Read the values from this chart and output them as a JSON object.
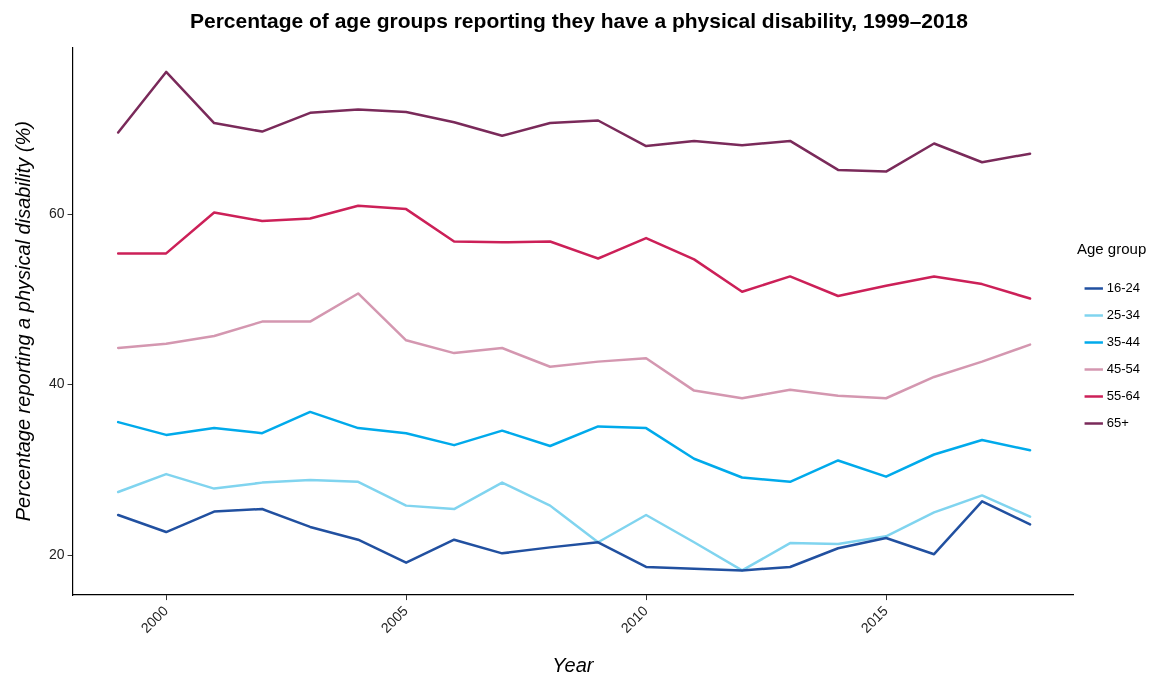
{
  "chart_data": {
    "type": "line",
    "title": "Percentage of age groups reporting they have a physical disability, 1999–2018",
    "xlabel": "Year",
    "ylabel": "Percentage reporting a physical disability (%)",
    "legend_title": "Age group",
    "x": [
      1999,
      2000,
      2001,
      2002,
      2003,
      2004,
      2005,
      2006,
      2007,
      2008,
      2009,
      2010,
      2011,
      2012,
      2013,
      2014,
      2015,
      2016,
      2017,
      2018
    ],
    "series": [
      {
        "name": "16-24",
        "color": "#2150a0",
        "values": [
          24.7,
          22.7,
          25.1,
          25.4,
          23.3,
          21.8,
          19.1,
          21.8,
          20.2,
          20.9,
          21.5,
          18.6,
          18.4,
          18.2,
          18.6,
          20.8,
          22.0,
          20.1,
          26.3,
          23.6
        ]
      },
      {
        "name": "25-34",
        "color": "#80d4ef",
        "values": [
          27.4,
          29.5,
          27.8,
          28.5,
          28.8,
          28.6,
          25.8,
          25.4,
          28.5,
          25.8,
          21.5,
          24.7,
          21.5,
          18.2,
          21.4,
          21.3,
          22.2,
          25.0,
          27.0,
          24.5
        ]
      },
      {
        "name": "35-44",
        "color": "#00aaeb",
        "values": [
          35.6,
          34.1,
          34.9,
          34.3,
          36.8,
          34.9,
          34.3,
          32.9,
          34.6,
          32.8,
          35.1,
          34.9,
          31.3,
          29.1,
          28.6,
          31.1,
          29.2,
          31.8,
          33.5,
          32.3
        ]
      },
      {
        "name": "45-54",
        "color": "#d497b0",
        "values": [
          44.3,
          44.8,
          45.7,
          47.4,
          47.4,
          50.7,
          45.2,
          43.7,
          44.3,
          42.1,
          42.7,
          43.1,
          39.3,
          38.4,
          39.4,
          38.7,
          38.4,
          40.9,
          42.7,
          44.7
        ]
      },
      {
        "name": "55-64",
        "color": "#cc2058",
        "values": [
          55.4,
          55.4,
          60.2,
          59.2,
          59.5,
          61.0,
          60.6,
          56.8,
          56.7,
          56.8,
          54.8,
          57.2,
          54.7,
          50.9,
          52.7,
          50.4,
          51.6,
          52.7,
          51.8,
          50.1
        ]
      },
      {
        "name": "65+",
        "color": "#7a2a5a",
        "values": [
          69.6,
          76.7,
          70.7,
          69.7,
          71.9,
          72.3,
          72.0,
          70.8,
          69.2,
          70.7,
          71.0,
          68.0,
          68.6,
          68.1,
          68.6,
          65.2,
          65.0,
          68.3,
          66.1,
          67.1
        ]
      }
    ],
    "xlim": [
      1998.05,
      2018.9
    ],
    "xticks": [
      2000,
      2005,
      2010,
      2015
    ],
    "ylim": [
      15.3,
      79.6
    ],
    "yticks": [
      20,
      40,
      60
    ],
    "grid": false,
    "legend": "right",
    "marker": "none",
    "line_style": "solid"
  }
}
